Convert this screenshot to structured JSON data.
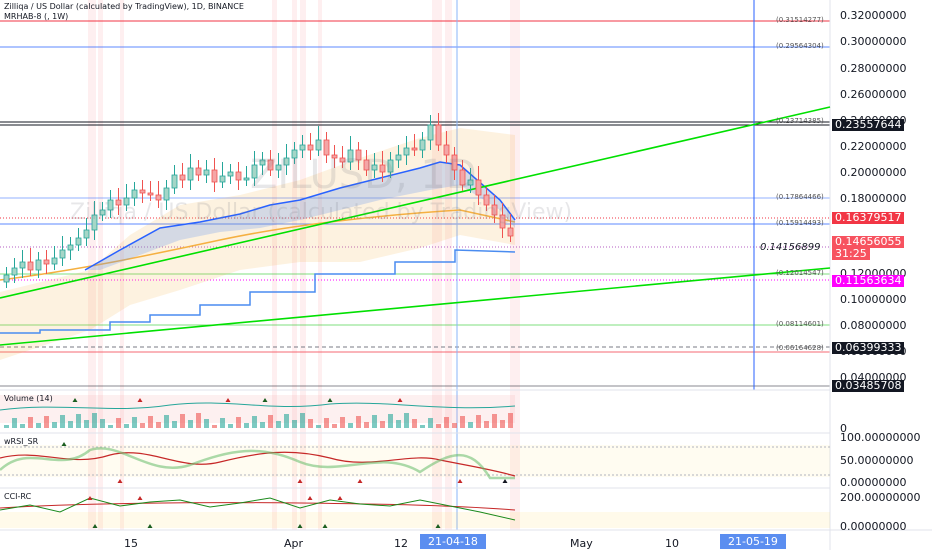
{
  "header": {
    "title": "Zilliqa / US Dollar (calculated by TradingView), 1D, BINANCE",
    "indicator": "MRHAB-8 (, 1W)"
  },
  "watermark": {
    "symbol": "ZILUSD, 1D",
    "name": "Zilliqa / US Dollar (calculated by TradingView)"
  },
  "price_axis": {
    "ticks": [
      "0.32000000",
      "0.30000000",
      "0.28000000",
      "0.26000000",
      "0.24000000",
      "0.22000000",
      "0.20000000",
      "0.18000000",
      "0.12000000",
      "0.10000000",
      "0.08000000",
      "0.06000000",
      "0.04000000"
    ]
  },
  "price_labels": [
    {
      "text": "0.23557644",
      "bg": "#131722",
      "fg": "#ffffff"
    },
    {
      "text": "0.16379517",
      "bg": "#f23645",
      "fg": "#ffffff"
    },
    {
      "text": "0.14656055",
      "bg": "#f7525f",
      "fg": "#ffffff"
    },
    {
      "text": "31:25",
      "bg": "#f7525f",
      "fg": "#ffffff"
    },
    {
      "text": "0.11563634",
      "bg": "#ff00ff",
      "fg": "#ffffff"
    },
    {
      "text": "0.06399333",
      "bg": "#131722",
      "fg": "#ffffff"
    },
    {
      "text": "0.03485708",
      "bg": "#131722",
      "fg": "#ffffff"
    }
  ],
  "fib_labels": [
    "(0.31514277)",
    "(0.29564304)",
    "(0.23714385)",
    "(0.17864466)",
    "(0.15914493)",
    "(0.12014547)",
    "(0.08114601)",
    "(0.06164628)"
  ],
  "crosshair_value": "0.14156899",
  "panes": {
    "volume": {
      "title": "Volume (14)",
      "axis": "0"
    },
    "wrsi": {
      "title": "wRSI_SR",
      "axis": [
        "100.00000000",
        "50.00000000",
        "0.00000000"
      ]
    },
    "cci": {
      "title": "CCI-RC",
      "axis": [
        "200.00000000",
        "0.00000000"
      ]
    }
  },
  "time_axis": {
    "labels": [
      "15",
      "Apr",
      "12",
      "May",
      "10"
    ],
    "highlight_1": "21-04-18",
    "highlight_2": "21-05-19"
  },
  "colors": {
    "up": "#26a69a",
    "down": "#ef5350",
    "trend": "#00e000",
    "blue": "#2962ff",
    "orange": "#f5b041",
    "pink": "#ff00ff"
  }
}
